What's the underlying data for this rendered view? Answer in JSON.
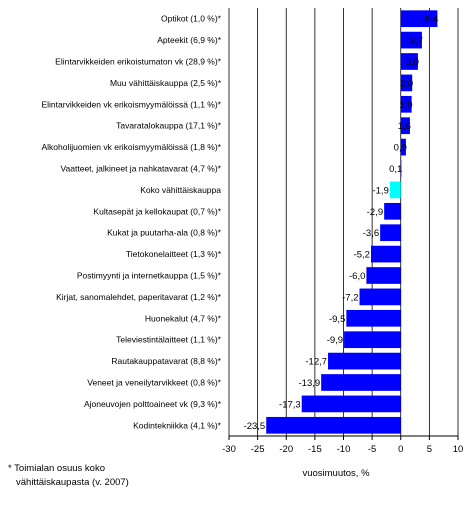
{
  "chart_data": {
    "type": "bar",
    "orientation": "horizontal",
    "categories": [
      "Optikot (1,0 %)*",
      "Apteekit (6,9 %)*",
      "Elintarvikkeiden erikoistumaton vk (28,9 %)*",
      "Muu vähittäiskauppa (2,5 %)*",
      "Elintarvikkeiden vk erikoismyymälöissä (1,1 %)*",
      "Tavaratalokauppa (17,1 %)*",
      "Alkoholijuomien vk erikoismyymälöissä (1,8 %)*",
      "Vaatteet, jalkineet ja nahkatavarat (4,7 %)*",
      "Koko vähittäiskauppa",
      "Kultasepät ja kellokaupat (0,7 %)*",
      "Kukat ja puutarha-ala (0,8 %)*",
      "Tietokonelaitteet (1,3 %)*",
      "Postimyynti ja internetkauppa (1,5 %)*",
      "Kirjat, sanomalehdet, paperitavarat (1,2 %)*",
      "Huonekalut (4,7 %)*",
      "Televiestintälaitteet (1,1 %)*",
      "Rautakauppatavarat (8,8 %)*",
      "Veneet ja veneilytarvikkeet (0,8 %)*",
      "Ajoneuvojen polttoaineet vk (9,3 %)*",
      "Kodintekniikka (4,1 %)*"
    ],
    "values": [
      6.4,
      3.7,
      3.0,
      2.0,
      1.9,
      1.6,
      0.9,
      0.1,
      -1.9,
      -2.9,
      -3.6,
      -5.2,
      -6.0,
      -7.2,
      -9.5,
      -9.9,
      -12.7,
      -13.9,
      -17.3,
      -23.5
    ],
    "value_labels": [
      "6,4",
      "3,7",
      "3,0",
      "2,0",
      "1,9",
      "1,6",
      "0,9",
      "0,1",
      "-1,9",
      "-2,9",
      "-3,6",
      "-5,2",
      "-6,0",
      "-7,2",
      "-9,5",
      "-9,9",
      "-12,7",
      "-13,9",
      "-17,3",
      "-23,5"
    ],
    "highlight_category": "Koko vähittäiskauppa",
    "colors": {
      "bar": "#0000ff",
      "highlight": "#00ffff",
      "gridline": "#000000"
    },
    "xlabel": "vuosimuutos, %",
    "xlim": [
      -30,
      10
    ],
    "x_ticks": [
      -30,
      -25,
      -20,
      -15,
      -10,
      -5,
      0,
      5,
      10
    ],
    "grid": "vertical",
    "footnote": [
      "* Toimialan osuus koko",
      "vähittäiskaupasta (v. 2007)"
    ]
  }
}
